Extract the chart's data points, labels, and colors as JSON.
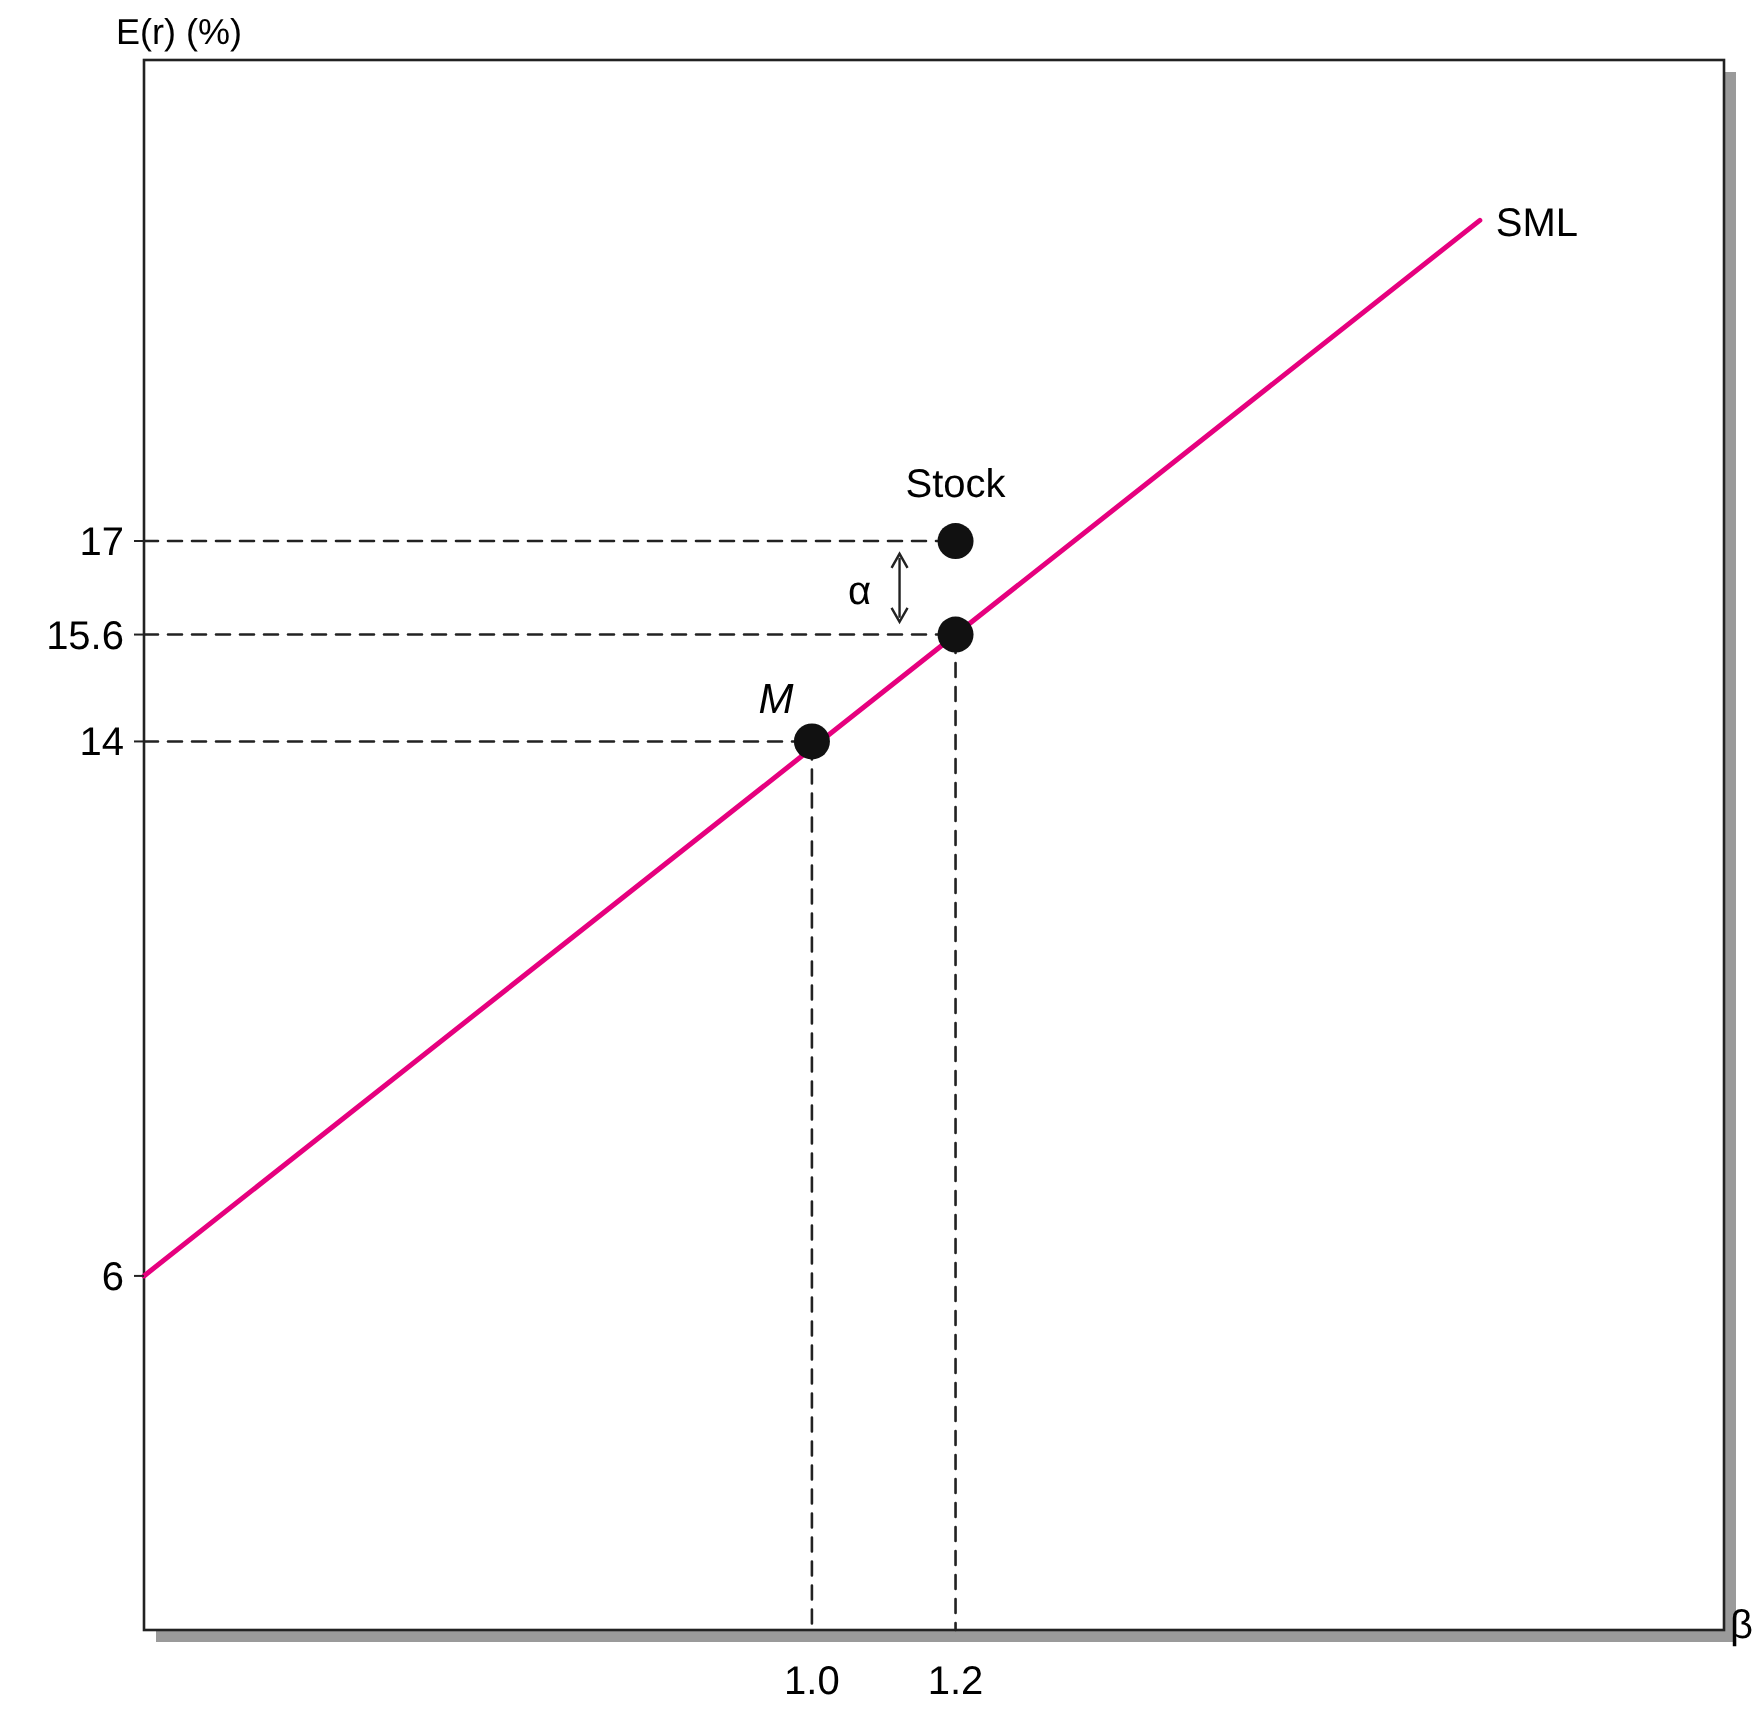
{
  "chart_data": {
    "type": "line",
    "xlabel": "β",
    "ylabel": "E(r) (%)",
    "xlim": [
      0.07,
      2.27
    ],
    "ylim": [
      0.7,
      24.2
    ],
    "xticks": [
      {
        "value": 1.0,
        "label": "1.0"
      },
      {
        "value": 1.2,
        "label": "1.2"
      }
    ],
    "yticks": [
      6,
      14,
      15.6,
      17
    ],
    "grid": false,
    "series": [
      {
        "name": "SML",
        "color": "#e6007e",
        "x": [
          0.07,
          1.93
        ],
        "values": [
          6,
          21.8
        ],
        "line_style": "solid"
      },
      {
        "type": "line",
        "color": "#222222",
        "x": [
          0.07,
          1.0,
          1.0
        ],
        "values": [
          14,
          14,
          0.7
        ],
        "line_style": "dashed"
      },
      {
        "type": "line",
        "color": "#222222",
        "x": [
          0.07,
          1.2,
          1.2
        ],
        "values": [
          15.6,
          15.6,
          0.7
        ],
        "line_style": "dashed"
      },
      {
        "type": "line",
        "color": "#222222",
        "x": [
          0.07,
          1.2
        ],
        "values": [
          17,
          17
        ],
        "line_style": "dashed"
      },
      {
        "type": "scatter",
        "color": "#111111",
        "x": [
          1.0,
          1.2,
          1.2
        ],
        "values": [
          14,
          15.6,
          17
        ],
        "marker": "circle"
      }
    ],
    "annotations": [
      {
        "text": "M",
        "x": 1.0,
        "y": 14
      },
      {
        "text": "Stock",
        "x": 1.2,
        "y": 17
      },
      "α"
    ]
  }
}
